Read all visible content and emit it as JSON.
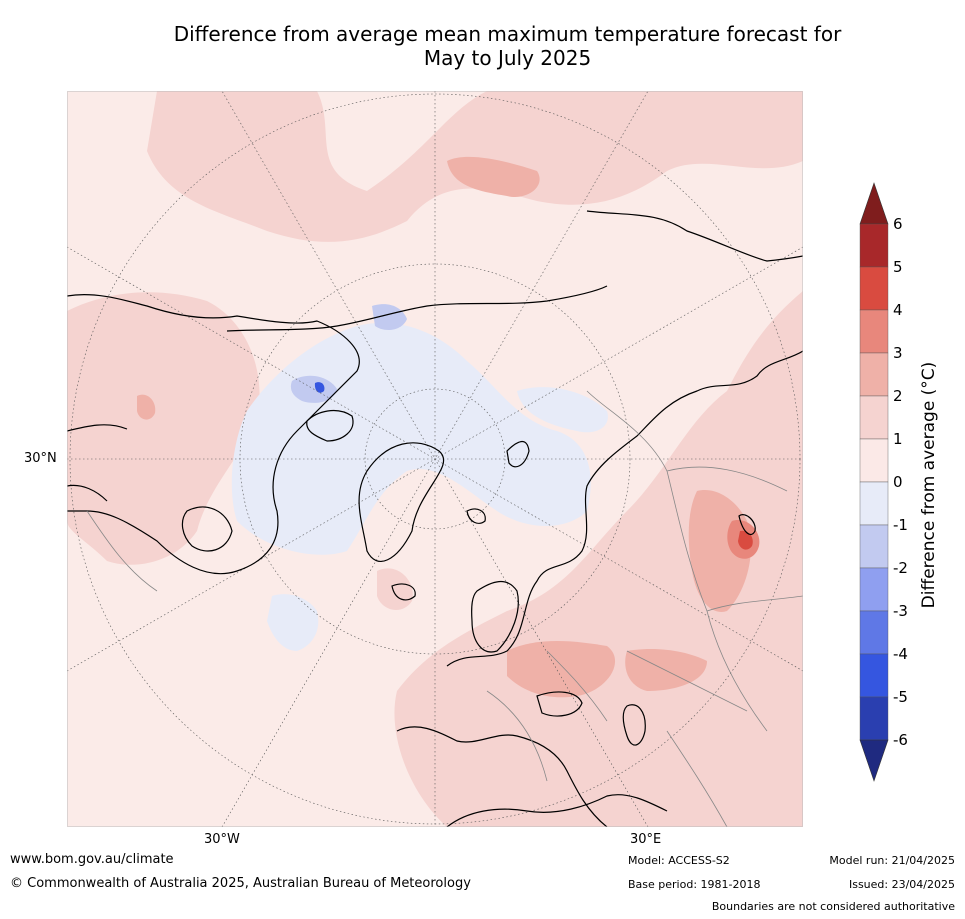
{
  "title": {
    "line1": "Difference from average mean maximum temperature forecast for",
    "line2": "May to July 2025"
  },
  "map": {
    "lat_labels": [
      "30°N"
    ],
    "lon_labels": [
      "30°W",
      "30°E"
    ]
  },
  "colorbar": {
    "label": "Difference from average (°C)",
    "ticks": [
      "6",
      "5",
      "4",
      "3",
      "2",
      "1",
      "0",
      "-1",
      "-2",
      "-3",
      "-4",
      "-5",
      "-6"
    ],
    "colors_warm": [
      "#7f1d1d",
      "#a8282a",
      "#d94b40",
      "#e8877c",
      "#efb1a8",
      "#f5d3d0",
      "#fbe9e7"
    ],
    "colors_cool": [
      "#e7ebf8",
      "#c2caf0",
      "#8f9ff0",
      "#5f78e6",
      "#3556e0",
      "#2a3fb0",
      "#1f2a80"
    ]
  },
  "footer": {
    "website": "www.bom.gov.au/climate",
    "copyright": "© Commonwealth of Australia 2025, Australian Bureau of Meteorology",
    "model": "Model: ACCESS-S2",
    "base_period": "Base period: 1981-2018",
    "model_run": "Model run: 21/04/2025",
    "issued": "Issued: 23/04/2025",
    "disclaimer": "Boundaries are not considered authoritative"
  }
}
